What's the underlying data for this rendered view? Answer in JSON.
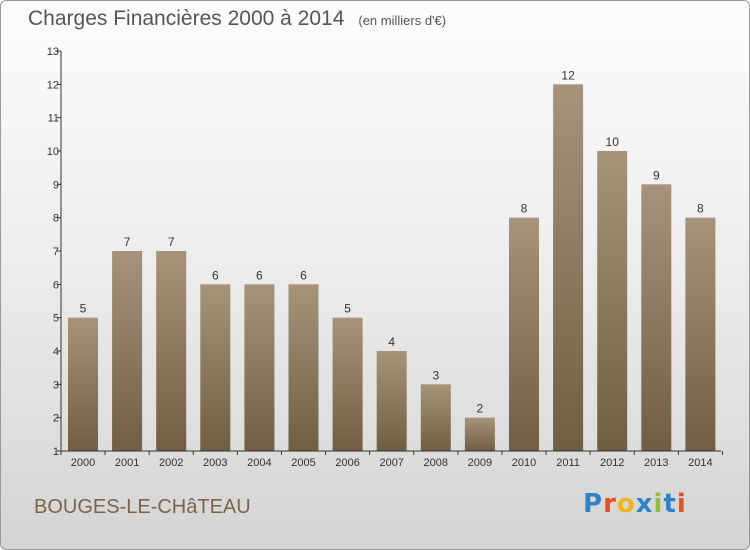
{
  "header": {
    "title": "Charges Financières 2000 à 2014",
    "unit": "(en milliers d'€)"
  },
  "footer": {
    "commune": "BOUGES-LE-CHâTEAU",
    "logo": "Proxiti"
  },
  "colors": {
    "bar_top": "#a6937a",
    "bar_bottom": "#715e42",
    "axis": "#333333",
    "grid": "#aaaaaa",
    "commune_text": "#7a6548"
  },
  "chart_data": {
    "type": "bar",
    "title": "Charges Financières 2000 à 2014",
    "subtitle": "(en milliers d'€)",
    "xlabel": "",
    "ylabel": "",
    "categories": [
      "2000",
      "2001",
      "2002",
      "2003",
      "2004",
      "2005",
      "2006",
      "2007",
      "2008",
      "2009",
      "2010",
      "2011",
      "2012",
      "2013",
      "2014"
    ],
    "values": [
      5,
      7,
      7,
      6,
      6,
      6,
      5,
      4,
      3,
      2,
      8,
      12,
      10,
      9,
      8
    ],
    "ylim": [
      1,
      13
    ],
    "yticks": [
      1,
      2,
      3,
      4,
      5,
      6,
      7,
      8,
      9,
      10,
      11,
      12,
      13
    ],
    "grid": false,
    "data_labels": true
  }
}
